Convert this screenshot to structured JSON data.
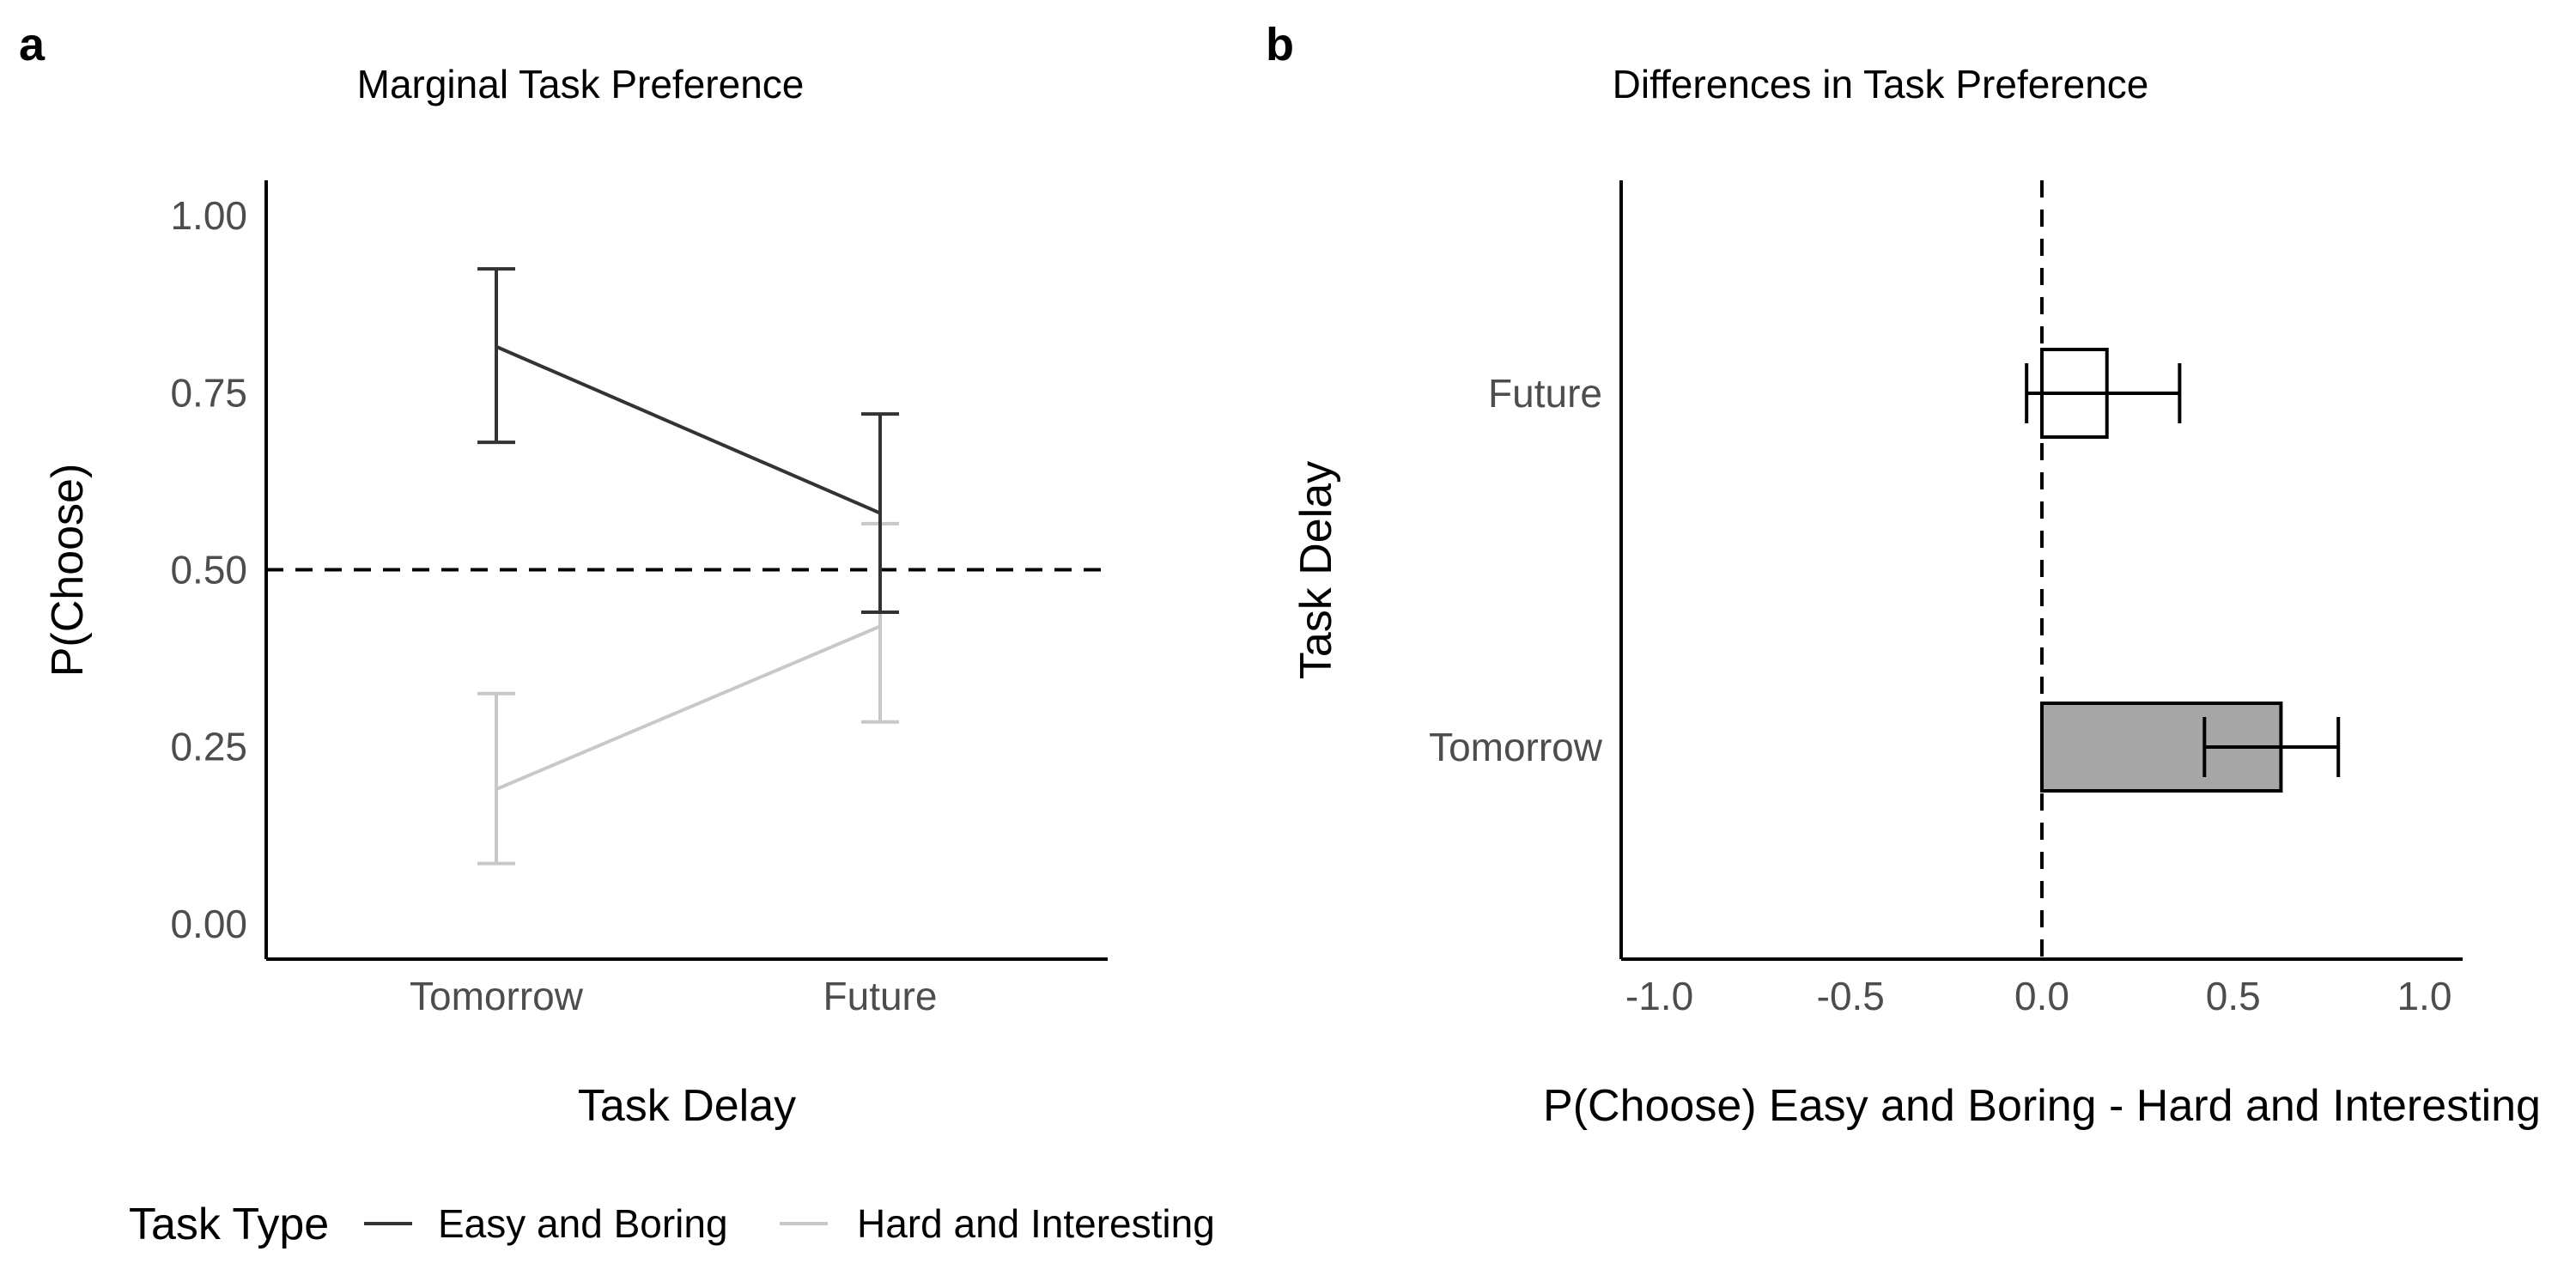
{
  "panel_labels": {
    "a": "a",
    "b": "b"
  },
  "legend": {
    "title": "Task Type",
    "items": [
      {
        "label": "Easy and Boring",
        "color": "#333333"
      },
      {
        "label": "Hard and Interesting",
        "color": "#c8c8c8"
      }
    ]
  },
  "chart_data": [
    {
      "type": "line",
      "title": "Marginal Task Preference",
      "xlabel": "Task Delay",
      "ylabel": "P(Choose)",
      "categories": [
        "Tomorrow",
        "Future"
      ],
      "ylim": [
        -0.05,
        1.05
      ],
      "yticks": [
        0,
        0.25,
        0.5,
        0.75,
        1
      ],
      "ytick_labels": [
        "0.00",
        "0.25",
        "0.50",
        "0.75",
        "1.00"
      ],
      "reference_line": {
        "y": 0.5,
        "style": "dashed"
      },
      "grid": false,
      "legend_position": "bottom",
      "series": [
        {
          "name": "Easy and Boring",
          "color": "#333333",
          "values": [
            0.815,
            0.58
          ],
          "lower": [
            0.68,
            0.44
          ],
          "upper": [
            0.925,
            0.72
          ]
        },
        {
          "name": "Hard and Interesting",
          "color": "#c8c8c8",
          "values": [
            0.19,
            0.42
          ],
          "lower": [
            0.085,
            0.285
          ],
          "upper": [
            0.325,
            0.565
          ]
        }
      ]
    },
    {
      "type": "bar",
      "orientation": "horizontal",
      "title": "Differences in Task Preference",
      "xlabel": "P(Choose) Easy and Boring - Hard and Interesting",
      "ylabel": "Task Delay",
      "categories": [
        "Future",
        "Tomorrow"
      ],
      "values": [
        0.17,
        0.625
      ],
      "lower": [
        -0.04,
        0.425
      ],
      "upper": [
        0.36,
        0.775
      ],
      "fills": [
        "#ffffff",
        "#a6a6a6"
      ],
      "xlim": [
        -1.1,
        1.1
      ],
      "xticks": [
        -1,
        -0.5,
        0,
        0.5,
        1
      ],
      "xtick_labels": [
        "-1.0",
        "-0.5",
        "0.0",
        "0.5",
        "1.0"
      ],
      "reference_line": {
        "x": 0,
        "style": "dashed"
      },
      "grid": false
    }
  ]
}
